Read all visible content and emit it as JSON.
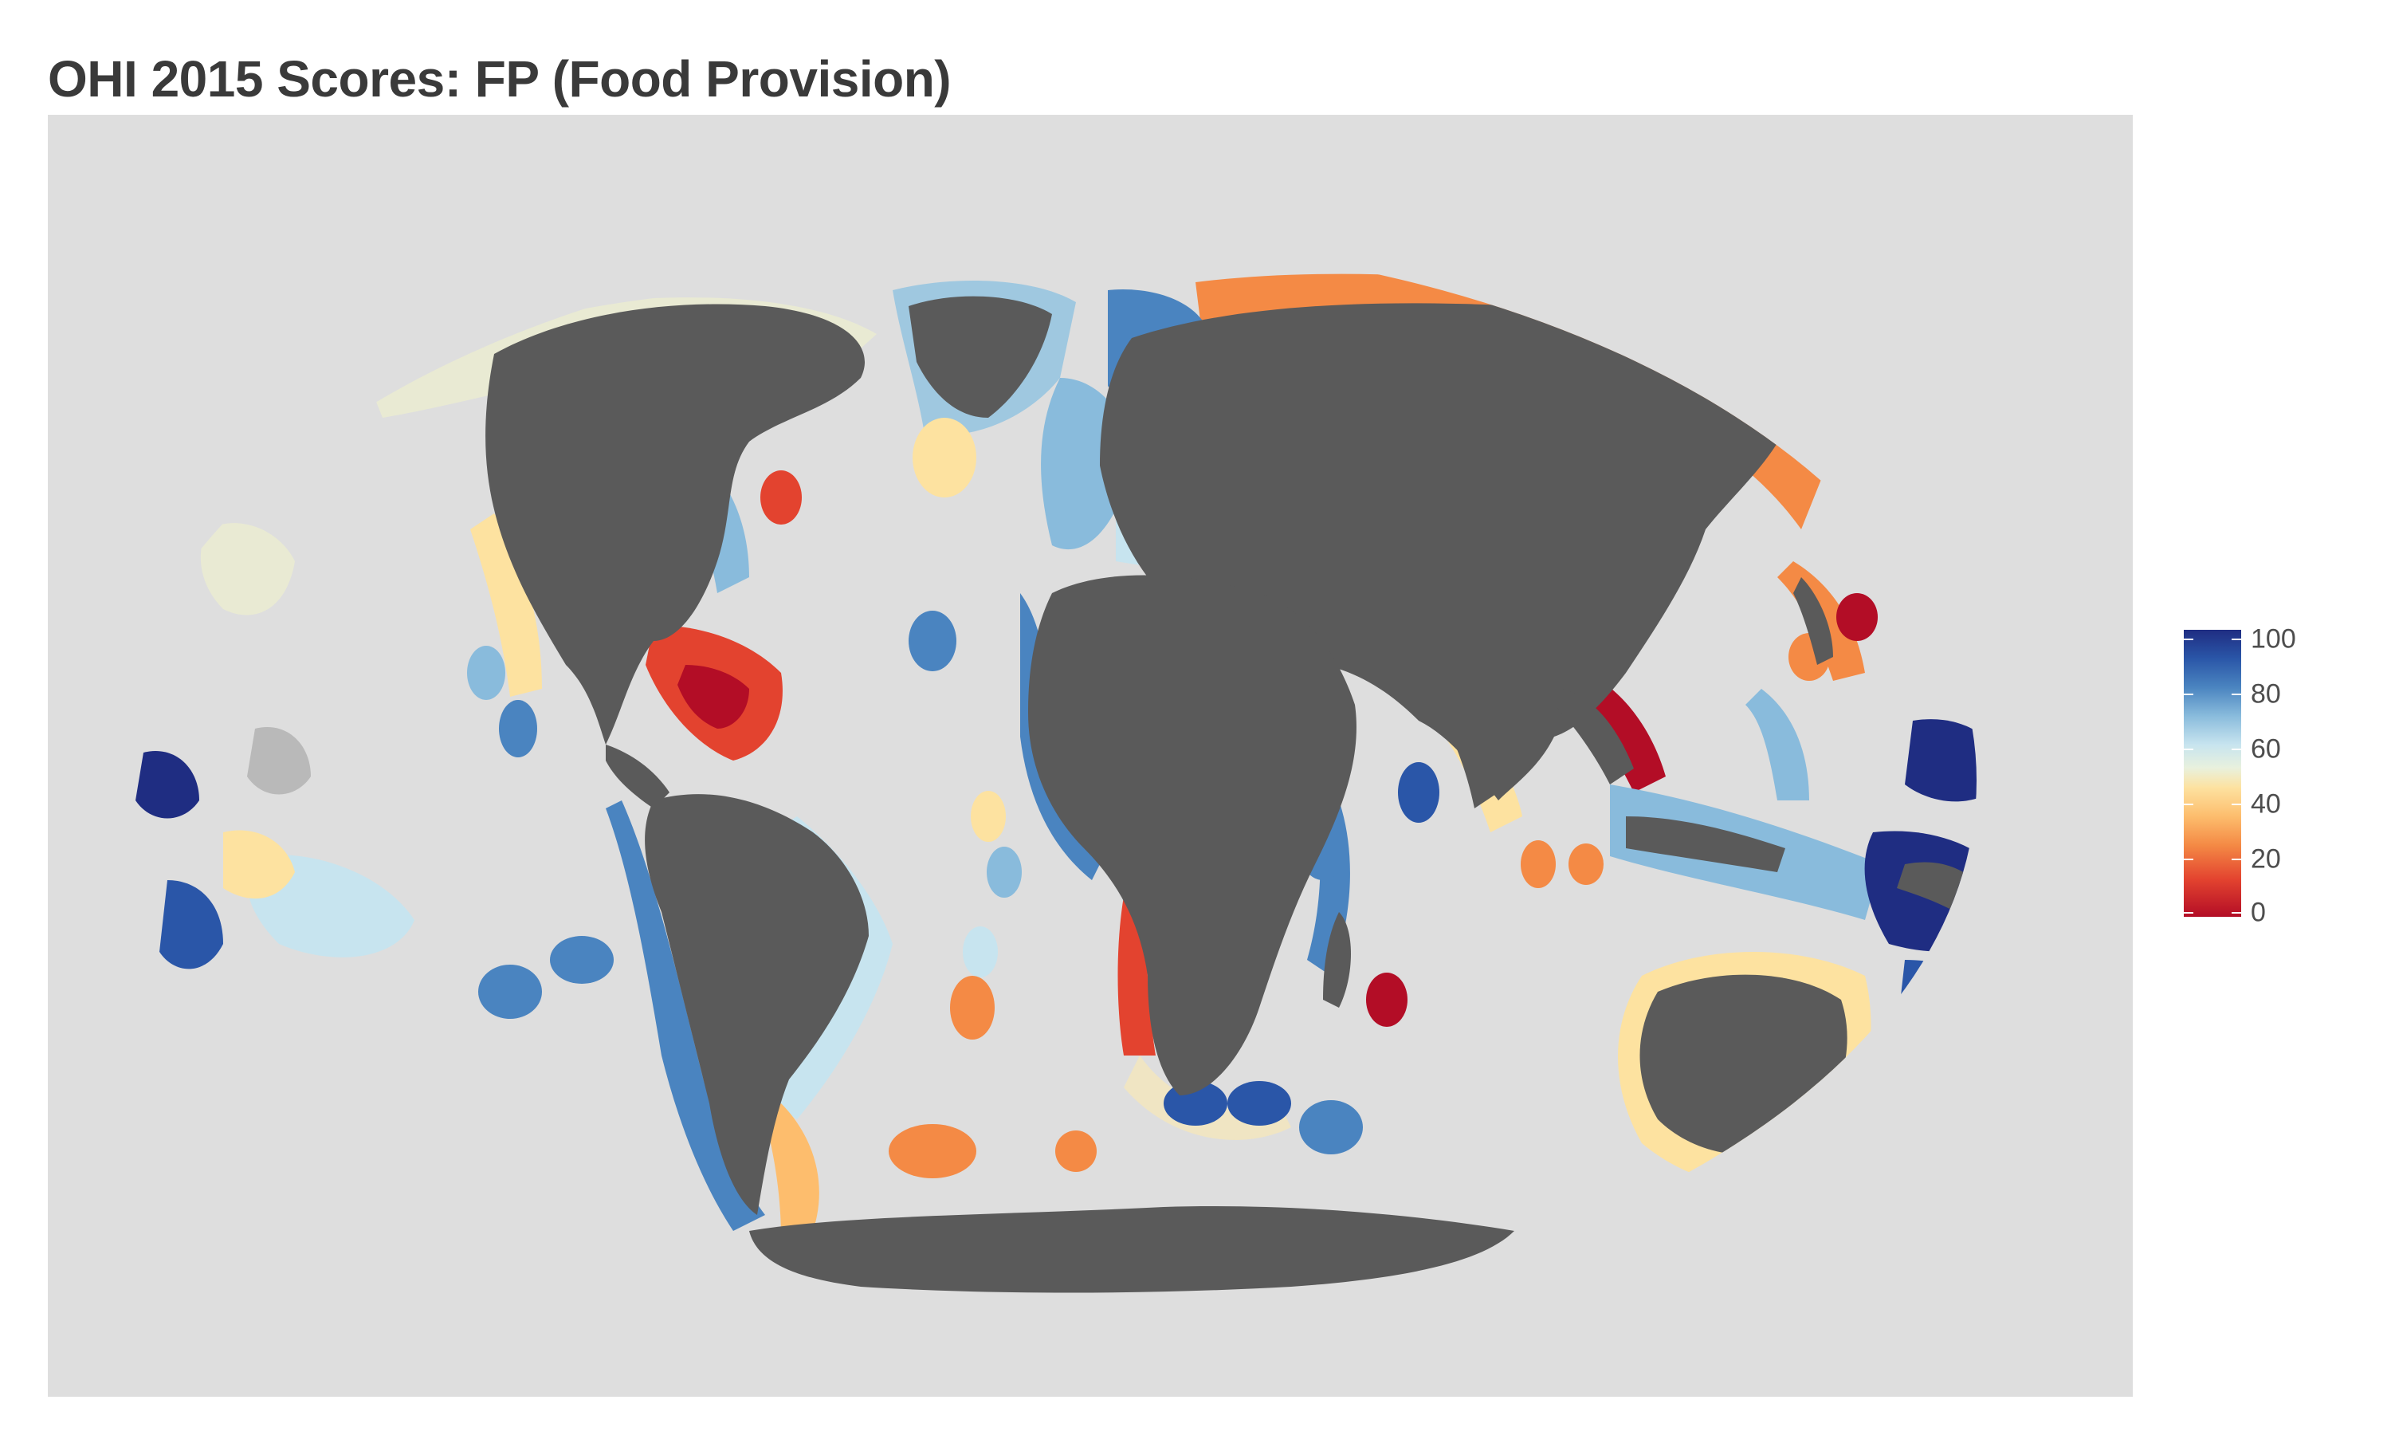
{
  "title": "OHI 2015 Scores: FP (Food Provision)",
  "colors": {
    "panel_background": "#dedede",
    "land": "#5a5a5a",
    "no_data": "#b9b9b9",
    "scale_high": "#1f2d82",
    "scale_mid": "#f0f3e0",
    "scale_low": "#b30d26"
  },
  "legend": {
    "ticks": [
      "100",
      "80",
      "60",
      "40",
      "20",
      "0"
    ],
    "min": 0,
    "max": 100
  }
}
